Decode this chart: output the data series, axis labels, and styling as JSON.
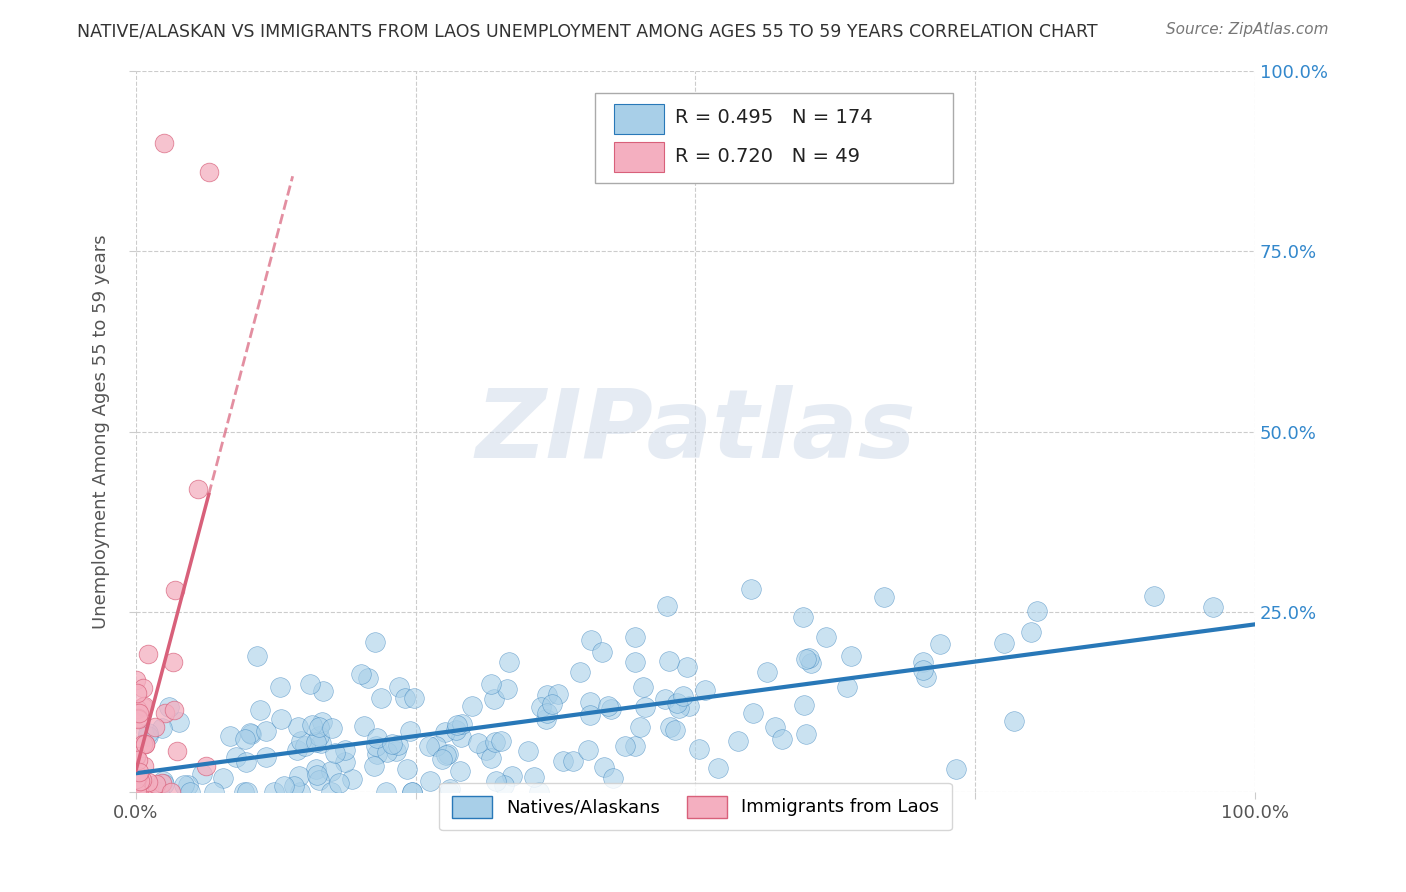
{
  "title": "NATIVE/ALASKAN VS IMMIGRANTS FROM LAOS UNEMPLOYMENT AMONG AGES 55 TO 59 YEARS CORRELATION CHART",
  "source": "Source: ZipAtlas.com",
  "ylabel": "Unemployment Among Ages 55 to 59 years",
  "xlim": [
    0,
    1
  ],
  "ylim": [
    0,
    1
  ],
  "xticks": [
    0,
    0.25,
    0.5,
    0.75,
    1.0
  ],
  "yticks": [
    0,
    0.25,
    0.5,
    0.75,
    1.0
  ],
  "xticklabels": [
    "0.0%",
    "",
    "",
    "",
    "100.0%"
  ],
  "right_yticklabels": [
    "",
    "25.0%",
    "50.0%",
    "75.0%",
    "100.0%"
  ],
  "legend_blue_label": "Natives/Alaskans",
  "legend_pink_label": "Immigrants from Laos",
  "blue_R": 0.495,
  "blue_N": 174,
  "pink_R": 0.72,
  "pink_N": 49,
  "blue_color": "#a8cfe8",
  "pink_color": "#f4afc0",
  "blue_line_color": "#2878b8",
  "pink_line_color": "#d8607a",
  "watermark_text": "ZIPatlas",
  "title_color": "#333333",
  "axis_color": "#555555",
  "grid_color": "#cccccc",
  "stat_text_color": "#3388cc",
  "background_color": "#ffffff"
}
